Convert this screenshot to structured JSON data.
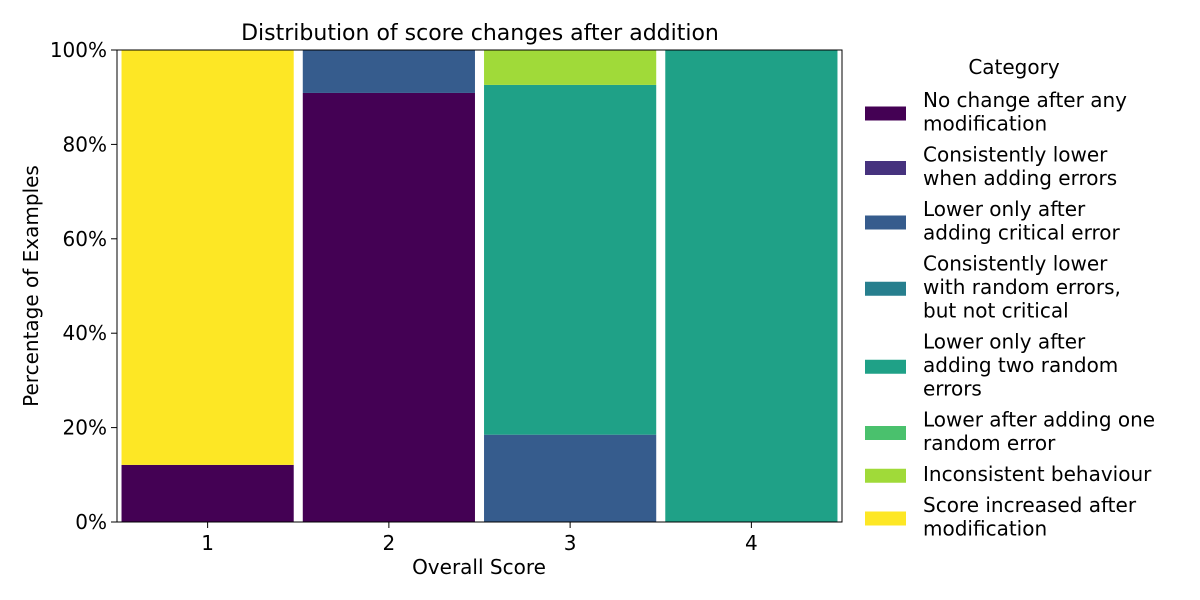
{
  "chart_data": {
    "type": "bar",
    "stacked": true,
    "title": "Distribution of score changes after addition",
    "xlabel": "Overall Score",
    "ylabel": "Percentage of Examples",
    "categories": [
      "1",
      "2",
      "3",
      "4"
    ],
    "ylim": [
      0,
      100
    ],
    "y_ticks": [
      "0%",
      "20%",
      "40%",
      "60%",
      "80%",
      "100%"
    ],
    "y_tick_values": [
      0,
      20,
      40,
      60,
      80,
      100
    ],
    "grid": false,
    "legend": {
      "title": "Category",
      "placement": "right, outside plot"
    },
    "series": [
      {
        "name": "No change after any modification",
        "legend_lines": [
          "No change after any",
          "modification"
        ],
        "color": "#440154",
        "values": [
          12.1,
          90.9,
          0,
          0
        ]
      },
      {
        "name": "Consistently lower when adding errors",
        "legend_lines": [
          "Consistently lower",
          "when adding errors"
        ],
        "color": "#46327e",
        "values": [
          0,
          0,
          0,
          0
        ]
      },
      {
        "name": "Lower only after adding critical error",
        "legend_lines": [
          "Lower only after",
          "adding critical error"
        ],
        "color": "#365c8d",
        "values": [
          0,
          9.1,
          18.5,
          0
        ]
      },
      {
        "name": "Consistently lower with random errors, but not critical",
        "legend_lines": [
          "Consistently lower",
          "with random errors,",
          "but not critical"
        ],
        "color": "#277f8e",
        "values": [
          0,
          0,
          0,
          0
        ]
      },
      {
        "name": "Lower only after adding two random errors",
        "legend_lines": [
          "Lower only after",
          "adding two random",
          "errors"
        ],
        "color": "#1fa187",
        "values": [
          0,
          0,
          74.1,
          100
        ]
      },
      {
        "name": "Lower after adding one random error",
        "legend_lines": [
          "Lower after adding one",
          "random error"
        ],
        "color": "#4ac16d",
        "values": [
          0,
          0,
          0,
          0
        ]
      },
      {
        "name": "Inconsistent behaviour",
        "legend_lines": [
          "Inconsistent behaviour"
        ],
        "color": "#a0da39",
        "values": [
          0,
          0,
          7.4,
          0
        ]
      },
      {
        "name": "Score increased after modification",
        "legend_lines": [
          "Score increased after",
          "modification"
        ],
        "color": "#fde725",
        "values": [
          87.9,
          0,
          0,
          0
        ]
      }
    ]
  }
}
